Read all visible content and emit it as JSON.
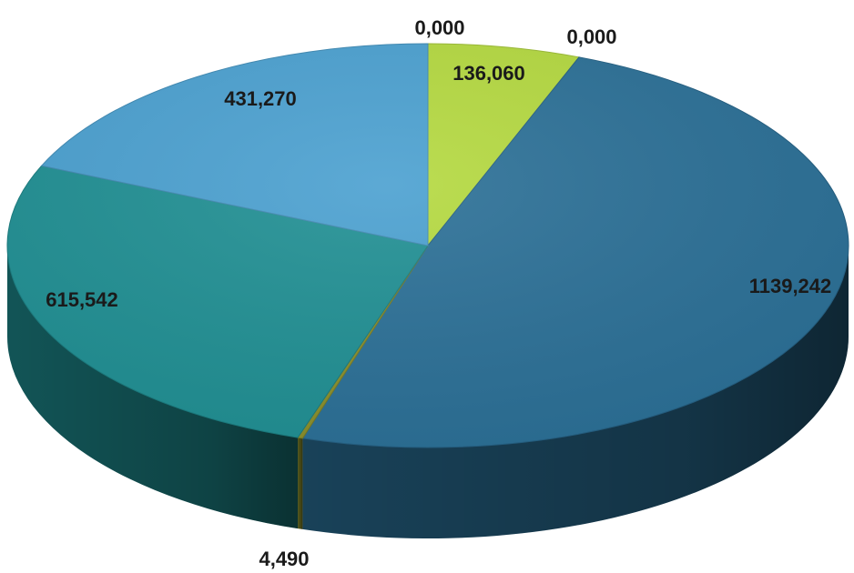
{
  "chart_data": {
    "type": "pie",
    "title": "",
    "three_d": true,
    "start_angle_deg": 90,
    "direction": "clockwise",
    "slices": [
      {
        "value": 0.0,
        "label": "0,000",
        "color": "#7fbf3a"
      },
      {
        "value": 136.06,
        "label": "136,060",
        "color": "#b4d93f"
      },
      {
        "value": 0.0,
        "label": "0,000",
        "color": "#8fcf4a"
      },
      {
        "value": 1139.242,
        "label": "1139,242",
        "color": "#2a6f96"
      },
      {
        "value": 4.49,
        "label": "4,490",
        "color": "#8a8f2a"
      },
      {
        "value": 615.542,
        "label": "615,542",
        "color": "#1f8f93"
      },
      {
        "value": 431.27,
        "label": "431,270",
        "color": "#4aa0d0"
      }
    ]
  }
}
